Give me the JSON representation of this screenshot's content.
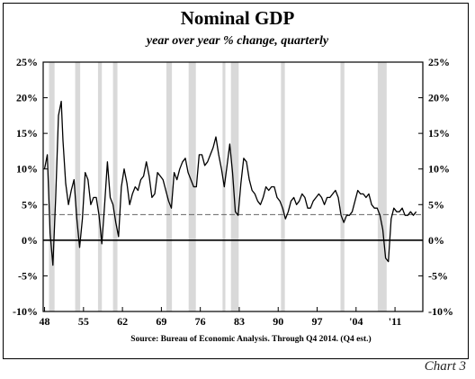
{
  "chart_data": {
    "type": "line",
    "title": "Nominal GDP",
    "subtitle": "year over year % change, quarterly",
    "source": "Source:  Bureau of Economic Analysis. Through Q4 2014. (Q4 est.)",
    "chart_label": "Chart 3",
    "xlabel": "",
    "ylabel": "",
    "xlim": [
      1947.75,
      2016.0
    ],
    "ylim": [
      -10,
      25
    ],
    "y_ticks": [
      -10,
      -5,
      0,
      5,
      10,
      15,
      20,
      25
    ],
    "y_tick_labels": [
      "-10%",
      "-5%",
      "0%",
      "5%",
      "10%",
      "15%",
      "20%",
      "25%"
    ],
    "x_ticks": [
      1948,
      1955,
      1962,
      1969,
      1976,
      1983,
      1990,
      1997,
      2004,
      2011
    ],
    "x_tick_labels": [
      "48",
      "55",
      "62",
      "69",
      "76",
      "83",
      "90",
      "97",
      "'04",
      "'11"
    ],
    "average_line": 3.6,
    "recessions": [
      [
        1948.8,
        1949.8
      ],
      [
        1953.5,
        1954.4
      ],
      [
        1957.6,
        1958.3
      ],
      [
        1960.3,
        1961.1
      ],
      [
        1969.9,
        1970.9
      ],
      [
        1973.9,
        1975.2
      ],
      [
        1980.0,
        1980.5
      ],
      [
        1981.5,
        1982.9
      ],
      [
        1990.5,
        1991.2
      ],
      [
        2001.2,
        2001.9
      ],
      [
        2007.9,
        2009.5
      ]
    ],
    "grid": false,
    "series": [
      {
        "x": [
          1948.0,
          1948.5,
          1949.0,
          1949.5,
          1950.0,
          1950.5,
          1951.0,
          1951.3,
          1951.8,
          1952.3,
          1952.8,
          1953.3,
          1953.8,
          1954.3,
          1954.8,
          1955.3,
          1955.8,
          1956.3,
          1956.8,
          1957.3,
          1957.8,
          1958.3,
          1958.8,
          1959.3,
          1959.8,
          1960.3,
          1960.8,
          1961.3,
          1961.8,
          1962.3,
          1962.8,
          1963.3,
          1963.8,
          1964.3,
          1964.8,
          1965.3,
          1965.8,
          1966.3,
          1966.8,
          1967.3,
          1967.8,
          1968.3,
          1968.8,
          1969.3,
          1969.8,
          1970.3,
          1970.8,
          1971.3,
          1971.8,
          1972.3,
          1972.8,
          1973.3,
          1973.8,
          1974.3,
          1974.8,
          1975.3,
          1975.8,
          1976.3,
          1976.8,
          1977.3,
          1977.8,
          1978.3,
          1978.8,
          1979.3,
          1979.8,
          1980.3,
          1980.8,
          1981.3,
          1981.8,
          1982.3,
          1982.8,
          1983.3,
          1983.8,
          1984.3,
          1984.8,
          1985.3,
          1985.8,
          1986.3,
          1986.8,
          1987.3,
          1987.8,
          1988.3,
          1988.8,
          1989.3,
          1989.8,
          1990.3,
          1990.8,
          1991.3,
          1991.8,
          1992.3,
          1992.8,
          1993.3,
          1993.8,
          1994.3,
          1994.8,
          1995.3,
          1995.8,
          1996.3,
          1996.8,
          1997.3,
          1997.8,
          1998.3,
          1998.8,
          1999.3,
          1999.8,
          2000.3,
          2000.8,
          2001.3,
          2001.8,
          2002.3,
          2002.8,
          2003.3,
          2003.8,
          2004.3,
          2004.8,
          2005.3,
          2005.8,
          2006.3,
          2006.8,
          2007.3,
          2007.8,
          2008.3,
          2008.8,
          2009.3,
          2009.8,
          2010.3,
          2010.8,
          2011.3,
          2011.8,
          2012.3,
          2012.8,
          2013.3,
          2013.8,
          2014.3,
          2014.8
        ],
        "values": [
          10.0,
          12.0,
          1.0,
          -3.5,
          6.0,
          17.5,
          19.5,
          14.0,
          8.0,
          5.0,
          7.0,
          8.5,
          3.0,
          -1.0,
          3.0,
          9.5,
          8.5,
          5.0,
          6.0,
          6.0,
          3.5,
          -0.5,
          5.0,
          11.0,
          6.0,
          5.0,
          2.5,
          0.5,
          7.5,
          10.0,
          8.0,
          5.0,
          6.5,
          7.5,
          7.0,
          8.5,
          9.0,
          11.0,
          9.0,
          6.0,
          6.5,
          9.5,
          9.0,
          8.5,
          7.0,
          5.5,
          4.5,
          9.5,
          8.5,
          10.0,
          11.0,
          11.5,
          9.5,
          8.5,
          7.5,
          7.5,
          12.0,
          12.0,
          10.5,
          11.0,
          12.0,
          13.0,
          14.5,
          12.0,
          10.0,
          7.5,
          10.5,
          13.5,
          9.5,
          4.0,
          3.5,
          8.0,
          11.5,
          11.0,
          8.5,
          7.0,
          6.5,
          5.5,
          5.0,
          6.0,
          7.5,
          7.0,
          7.5,
          7.5,
          6.0,
          5.5,
          4.5,
          3.0,
          4.0,
          5.5,
          6.0,
          5.0,
          5.5,
          6.5,
          6.0,
          4.5,
          4.5,
          5.5,
          6.0,
          6.5,
          6.0,
          5.0,
          6.0,
          6.0,
          6.5,
          7.0,
          6.0,
          3.5,
          2.5,
          3.5,
          3.5,
          4.0,
          5.5,
          7.0,
          6.5,
          6.5,
          6.0,
          6.5,
          5.0,
          4.5,
          4.5,
          3.5,
          1.5,
          -2.5,
          -3.0,
          3.0,
          4.5,
          4.0,
          4.0,
          4.5,
          3.5,
          3.5,
          4.0,
          3.5,
          4.0
        ]
      }
    ]
  }
}
